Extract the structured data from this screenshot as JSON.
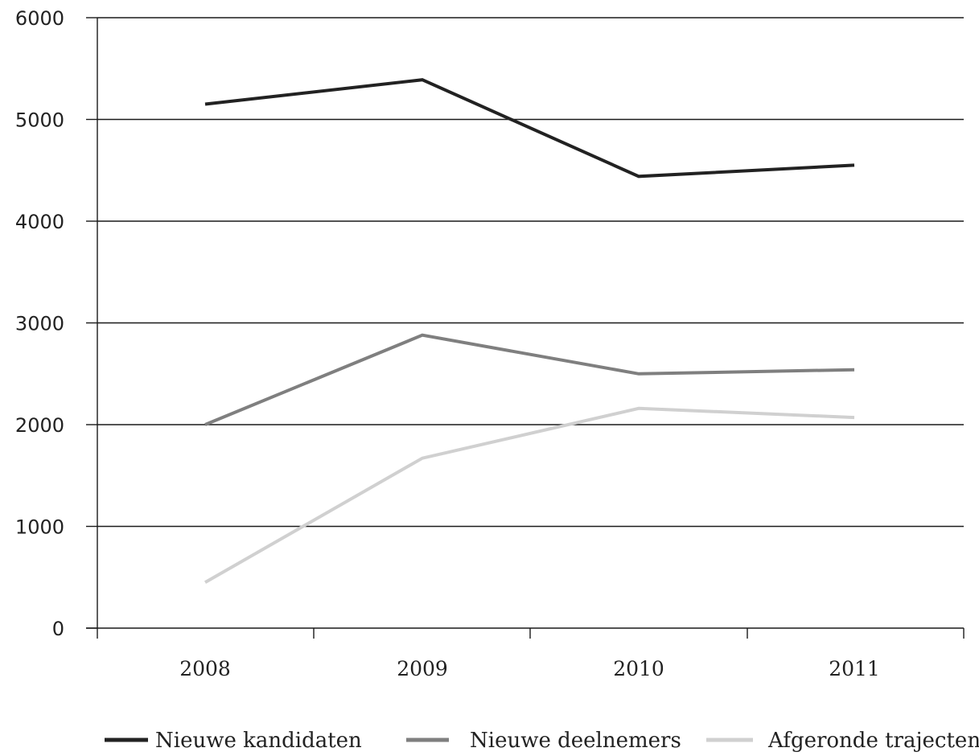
{
  "chart_data": {
    "type": "line",
    "title": "",
    "xlabel": "",
    "ylabel": "",
    "categories": [
      "2008",
      "2009",
      "2010",
      "2011"
    ],
    "ylim": [
      0,
      6000
    ],
    "yticks": [
      0,
      1000,
      2000,
      3000,
      4000,
      5000,
      6000
    ],
    "grid": "horizontal",
    "legend_position": "bottom",
    "series": [
      {
        "name": "Nieuwe kandidaten",
        "color": "#222222",
        "values": [
          5150,
          5390,
          4440,
          4550
        ]
      },
      {
        "name": "Nieuwe deelnemers",
        "color": "#7f7f7f",
        "values": [
          2000,
          2880,
          2500,
          2540
        ]
      },
      {
        "name": "Afgeronde trajecten",
        "color": "#d0d0d0",
        "values": [
          450,
          1670,
          2160,
          2070
        ]
      }
    ]
  }
}
